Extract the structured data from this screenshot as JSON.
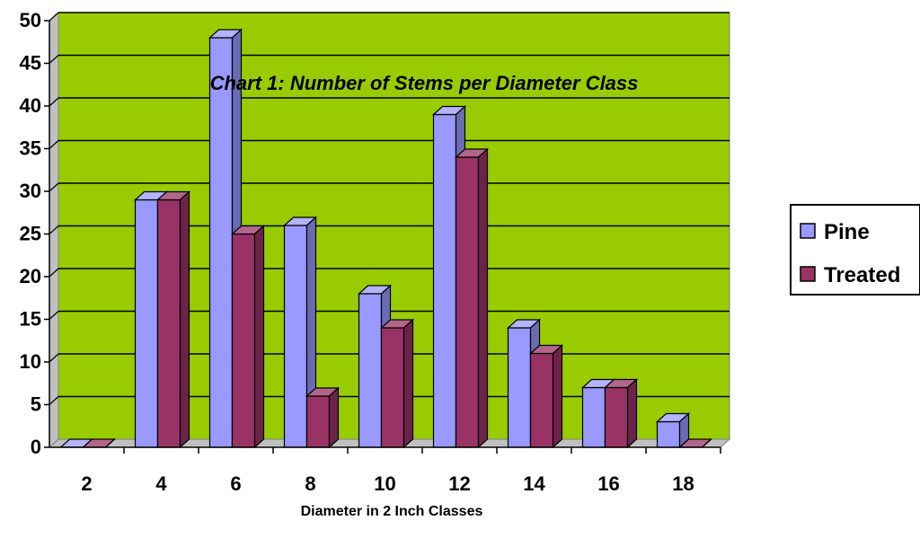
{
  "chart_data": {
    "type": "bar",
    "title": "Chart 1: Number of Stems per Diameter Class",
    "xlabel": "Diameter in 2 Inch Classes",
    "ylabel": "",
    "categories": [
      "2",
      "4",
      "6",
      "8",
      "10",
      "12",
      "14",
      "16",
      "18"
    ],
    "series": [
      {
        "name": "Pine",
        "values": [
          0,
          29,
          48,
          26,
          18,
          39,
          14,
          7,
          3
        ],
        "color": "#9999FF"
      },
      {
        "name": "Treated",
        "values": [
          0,
          29,
          25,
          6,
          14,
          34,
          11,
          7,
          0
        ],
        "color": "#993366"
      }
    ],
    "ylim": [
      0,
      50
    ],
    "yticks": [
      0,
      5,
      10,
      15,
      20,
      25,
      30,
      35,
      40,
      45,
      50
    ],
    "grid": true,
    "legend_position": "right",
    "plot_background": "#99CC00",
    "style": "3d-clustered-column"
  }
}
